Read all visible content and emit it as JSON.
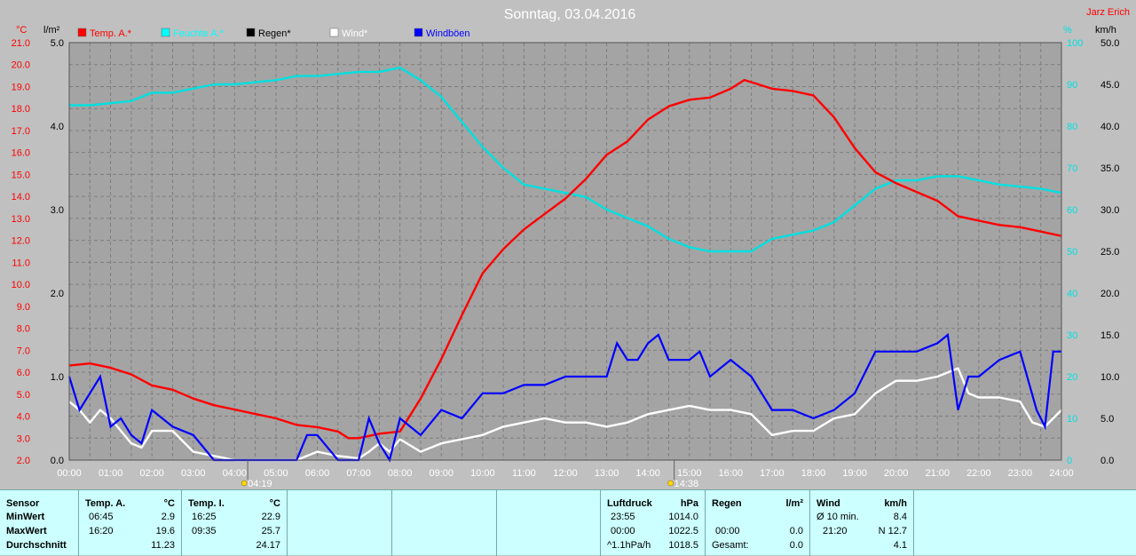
{
  "chart_data": {
    "type": "line",
    "title": "Sonntag, 03.04.2016",
    "author": "Jarz Erich",
    "x_unit_ticks": [
      "00:00",
      "01:00",
      "02:00",
      "03:00",
      "04:00",
      "05:00",
      "06:00",
      "07:00",
      "08:00",
      "09:00",
      "10:00",
      "11:00",
      "12:00",
      "13:00",
      "14:00",
      "15:00",
      "16:00",
      "17:00",
      "18:00",
      "19:00",
      "20:00",
      "21:00",
      "22:00",
      "23:00",
      "24:00"
    ],
    "xlim_hours": [
      0,
      24
    ],
    "axes": {
      "temp": {
        "unit": "°C",
        "min": 2.0,
        "max": 21.0,
        "step": 1.0,
        "color": "#ff0000",
        "ticks": [
          "2.0",
          "3.0",
          "4.0",
          "5.0",
          "6.0",
          "7.0",
          "8.0",
          "9.0",
          "10.0",
          "11.0",
          "12.0",
          "13.0",
          "14.0",
          "15.0",
          "16.0",
          "17.0",
          "18.0",
          "19.0",
          "20.0",
          "21.0"
        ]
      },
      "rain": {
        "unit": "l/m²",
        "min": 0.0,
        "max": 5.0,
        "color": "#000000",
        "ticks": [
          "0.0",
          "1.0",
          "2.0",
          "3.0",
          "4.0",
          "5.0"
        ]
      },
      "humidity": {
        "unit": "%",
        "min": 0,
        "max": 100,
        "color": "#00e0e0",
        "ticks": [
          "0",
          "10",
          "20",
          "30",
          "40",
          "50",
          "60",
          "70",
          "80",
          "90",
          "100"
        ]
      },
      "wind": {
        "unit": "km/h",
        "min": 0.0,
        "max": 50.0,
        "color": "#000000",
        "ticks": [
          "0.0",
          "5.0",
          "10.0",
          "15.0",
          "20.0",
          "25.0",
          "30.0",
          "35.0",
          "40.0",
          "45.0",
          "50.0"
        ]
      }
    },
    "grid": true,
    "legend": [
      {
        "label": "Temp. A.*",
        "color": "#ff0000"
      },
      {
        "label": "Feuchte A.*",
        "color": "#00ffff"
      },
      {
        "label": "Regen*",
        "color": "#000000"
      },
      {
        "label": "Wind*",
        "color": "#ffffff"
      },
      {
        "label": "Windböen",
        "color": "#0000ff"
      }
    ],
    "sun_markers": [
      {
        "label": "04:19",
        "hour": 4.317
      },
      {
        "label": "14:38",
        "hour": 14.633
      }
    ],
    "series": [
      {
        "name": "Temp. A.*",
        "axis": "temp",
        "color": "#ff0000",
        "points": [
          [
            0,
            6.3
          ],
          [
            0.5,
            6.4
          ],
          [
            1,
            6.2
          ],
          [
            1.5,
            5.9
          ],
          [
            2,
            5.4
          ],
          [
            2.5,
            5.2
          ],
          [
            3,
            4.8
          ],
          [
            3.5,
            4.5
          ],
          [
            4,
            4.3
          ],
          [
            4.5,
            4.1
          ],
          [
            5,
            3.9
          ],
          [
            5.5,
            3.6
          ],
          [
            6,
            3.5
          ],
          [
            6.5,
            3.3
          ],
          [
            6.75,
            3.0
          ],
          [
            7,
            3.0
          ],
          [
            7.5,
            3.2
          ],
          [
            8,
            3.3
          ],
          [
            8.5,
            4.8
          ],
          [
            9,
            6.6
          ],
          [
            9.5,
            8.6
          ],
          [
            10,
            10.5
          ],
          [
            10.5,
            11.6
          ],
          [
            11,
            12.5
          ],
          [
            11.5,
            13.2
          ],
          [
            12,
            13.9
          ],
          [
            12.5,
            14.8
          ],
          [
            13,
            15.9
          ],
          [
            13.5,
            16.5
          ],
          [
            14,
            17.5
          ],
          [
            14.5,
            18.1
          ],
          [
            15,
            18.4
          ],
          [
            15.5,
            18.5
          ],
          [
            16,
            18.9
          ],
          [
            16.33,
            19.3
          ],
          [
            16.5,
            19.2
          ],
          [
            17,
            18.9
          ],
          [
            17.5,
            18.8
          ],
          [
            18,
            18.6
          ],
          [
            18.5,
            17.6
          ],
          [
            19,
            16.2
          ],
          [
            19.5,
            15.1
          ],
          [
            20,
            14.6
          ],
          [
            20.5,
            14.2
          ],
          [
            21,
            13.8
          ],
          [
            21.5,
            13.1
          ],
          [
            22,
            12.9
          ],
          [
            22.5,
            12.7
          ],
          [
            23,
            12.6
          ],
          [
            23.5,
            12.4
          ],
          [
            24,
            12.2
          ]
        ]
      },
      {
        "name": "Feuchte A.*",
        "axis": "humidity",
        "color": "#00e0e0",
        "points": [
          [
            0,
            85
          ],
          [
            0.5,
            85
          ],
          [
            1,
            85.5
          ],
          [
            1.5,
            86
          ],
          [
            2,
            88
          ],
          [
            2.5,
            88
          ],
          [
            3,
            89
          ],
          [
            3.5,
            90
          ],
          [
            4,
            90
          ],
          [
            4.5,
            90.5
          ],
          [
            5,
            91
          ],
          [
            5.5,
            92
          ],
          [
            6,
            92
          ],
          [
            6.5,
            92.5
          ],
          [
            7,
            93
          ],
          [
            7.5,
            93
          ],
          [
            8,
            94
          ],
          [
            8.5,
            91
          ],
          [
            9,
            87
          ],
          [
            9.5,
            81
          ],
          [
            10,
            75
          ],
          [
            10.5,
            70
          ],
          [
            11,
            66
          ],
          [
            11.5,
            65
          ],
          [
            12,
            64
          ],
          [
            12.5,
            63
          ],
          [
            13,
            60
          ],
          [
            13.5,
            58
          ],
          [
            14,
            56
          ],
          [
            14.5,
            53
          ],
          [
            15,
            51
          ],
          [
            15.5,
            50
          ],
          [
            16,
            50
          ],
          [
            16.5,
            50
          ],
          [
            17,
            53
          ],
          [
            17.5,
            54
          ],
          [
            18,
            55
          ],
          [
            18.5,
            57
          ],
          [
            19,
            61
          ],
          [
            19.5,
            65
          ],
          [
            20,
            67
          ],
          [
            20.5,
            67
          ],
          [
            21,
            68
          ],
          [
            21.5,
            68
          ],
          [
            22,
            67
          ],
          [
            22.5,
            66
          ],
          [
            23,
            65.5
          ],
          [
            23.5,
            65
          ],
          [
            24,
            64
          ]
        ]
      },
      {
        "name": "Wind*",
        "axis": "wind",
        "color": "#ffffff",
        "points": [
          [
            0,
            7
          ],
          [
            0.25,
            6
          ],
          [
            0.5,
            4.5
          ],
          [
            0.75,
            6
          ],
          [
            1,
            5
          ],
          [
            1.25,
            3.5
          ],
          [
            1.5,
            2
          ],
          [
            1.75,
            1.5
          ],
          [
            2,
            3.5
          ],
          [
            2.5,
            3.5
          ],
          [
            3,
            1
          ],
          [
            3.5,
            0.5
          ],
          [
            4,
            0
          ],
          [
            5,
            0
          ],
          [
            5.5,
            0
          ],
          [
            6,
            1
          ],
          [
            6.5,
            0.5
          ],
          [
            7,
            0.2
          ],
          [
            7.25,
            1
          ],
          [
            7.5,
            2
          ],
          [
            7.75,
            1
          ],
          [
            8,
            2.5
          ],
          [
            8.5,
            1
          ],
          [
            9,
            2
          ],
          [
            9.5,
            2.5
          ],
          [
            10,
            3
          ],
          [
            10.5,
            4
          ],
          [
            11,
            4.5
          ],
          [
            11.5,
            5
          ],
          [
            12,
            4.5
          ],
          [
            12.5,
            4.5
          ],
          [
            13,
            4
          ],
          [
            13.5,
            4.5
          ],
          [
            14,
            5.5
          ],
          [
            14.5,
            6
          ],
          [
            15,
            6.5
          ],
          [
            15.5,
            6
          ],
          [
            16,
            6
          ],
          [
            16.5,
            5.5
          ],
          [
            17,
            3
          ],
          [
            17.5,
            3.5
          ],
          [
            18,
            3.5
          ],
          [
            18.5,
            5
          ],
          [
            19,
            5.5
          ],
          [
            19.5,
            8
          ],
          [
            20,
            9.5
          ],
          [
            20.5,
            9.5
          ],
          [
            21,
            10
          ],
          [
            21.5,
            11
          ],
          [
            21.75,
            8
          ],
          [
            22,
            7.5
          ],
          [
            22.5,
            7.5
          ],
          [
            23,
            7
          ],
          [
            23.3,
            4.5
          ],
          [
            23.6,
            4
          ],
          [
            24,
            6
          ]
        ]
      },
      {
        "name": "Windböen",
        "axis": "wind",
        "color": "#0000ff",
        "points": [
          [
            0,
            10
          ],
          [
            0.25,
            6
          ],
          [
            0.5,
            8
          ],
          [
            0.75,
            10
          ],
          [
            1,
            4
          ],
          [
            1.25,
            5
          ],
          [
            1.5,
            3
          ],
          [
            1.75,
            2
          ],
          [
            2,
            6
          ],
          [
            2.5,
            4
          ],
          [
            3,
            3
          ],
          [
            3.5,
            0
          ],
          [
            4,
            0
          ],
          [
            5,
            0
          ],
          [
            5.5,
            0
          ],
          [
            5.75,
            3
          ],
          [
            6,
            3
          ],
          [
            6.5,
            0
          ],
          [
            7,
            0
          ],
          [
            7.25,
            5
          ],
          [
            7.5,
            2
          ],
          [
            7.75,
            0
          ],
          [
            8,
            5
          ],
          [
            8.5,
            3
          ],
          [
            9,
            6
          ],
          [
            9.5,
            5
          ],
          [
            10,
            8
          ],
          [
            10.5,
            8
          ],
          [
            11,
            9
          ],
          [
            11.5,
            9
          ],
          [
            12,
            10
          ],
          [
            12.5,
            10
          ],
          [
            13,
            10
          ],
          [
            13.25,
            14
          ],
          [
            13.5,
            12
          ],
          [
            13.75,
            12
          ],
          [
            14,
            14
          ],
          [
            14.25,
            15
          ],
          [
            14.5,
            12
          ],
          [
            15,
            12
          ],
          [
            15.25,
            13
          ],
          [
            15.5,
            10
          ],
          [
            16,
            12
          ],
          [
            16.5,
            10
          ],
          [
            17,
            6
          ],
          [
            17.5,
            6
          ],
          [
            18,
            5
          ],
          [
            18.5,
            6
          ],
          [
            19,
            8
          ],
          [
            19.5,
            13
          ],
          [
            20,
            13
          ],
          [
            20.5,
            13
          ],
          [
            21,
            14
          ],
          [
            21.25,
            15
          ],
          [
            21.5,
            6
          ],
          [
            21.75,
            10
          ],
          [
            22,
            10
          ],
          [
            22.5,
            12
          ],
          [
            23,
            13
          ],
          [
            23.4,
            6
          ],
          [
            23.6,
            4
          ],
          [
            23.8,
            13
          ],
          [
            24,
            13
          ]
        ]
      }
    ]
  },
  "stats": {
    "sensor": {
      "header": "Sensor",
      "rows": [
        "MinWert",
        "MaxWert",
        "Durchschnitt"
      ]
    },
    "temp_a": {
      "header": "Temp. A.",
      "unit": "°C",
      "min_time": "06:45",
      "min_val": "2.9",
      "max_time": "16:20",
      "max_val": "19.6",
      "avg_val": "11.23"
    },
    "temp_i": {
      "header": "Temp. I.",
      "unit": "°C",
      "min_time": "16:25",
      "min_val": "22.9",
      "max_time": "09:35",
      "max_val": "25.7",
      "avg_val": "24.17"
    },
    "pressure": {
      "header": "Luftdruck",
      "unit": "hPa",
      "min_time": "23:55",
      "min_val": "1014.0",
      "max_time": "00:00",
      "max_val": "1022.5",
      "avg_label": "^1.1hPa/h",
      "avg_val": "1018.5"
    },
    "rain": {
      "header": "Regen",
      "unit": "l/m²",
      "max_time": "00:00",
      "max_val": "0.0",
      "total_label": "Gesamt:",
      "total_val": "0.0"
    },
    "wind": {
      "header": "Wind",
      "unit": "km/h",
      "avg10_label": "Ø 10 min.",
      "avg10_val": "8.4",
      "max_time": "21:20",
      "max_val": "N 12.7",
      "avg_val": "4.1"
    }
  }
}
